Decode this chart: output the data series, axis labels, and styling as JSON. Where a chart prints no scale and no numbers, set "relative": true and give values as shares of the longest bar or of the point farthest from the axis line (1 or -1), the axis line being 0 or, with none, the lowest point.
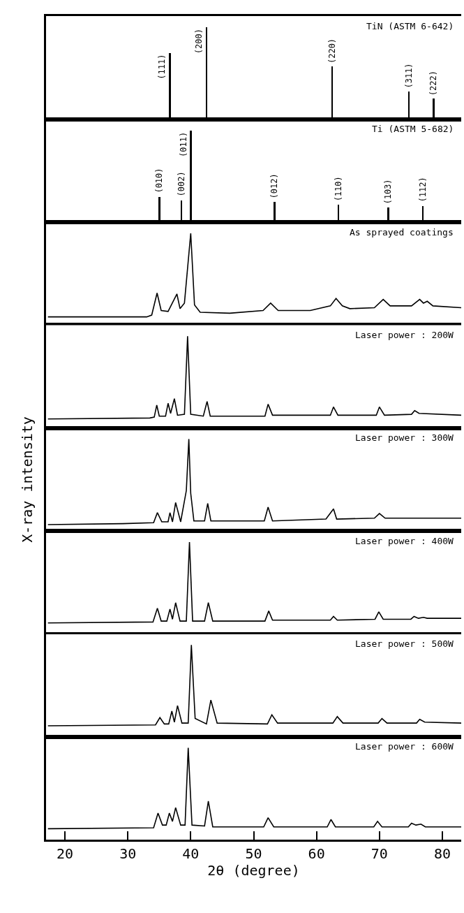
{
  "chart_data": [
    {
      "type": "bar",
      "title": "TiN (ASTM 6-642)",
      "xlim": [
        17,
        83
      ],
      "relative": true,
      "tick_labels": false,
      "series": [
        {
          "color": "#000000",
          "x": [
            36.7,
            42.5,
            62.5,
            74.7,
            78.6
          ],
          "values": [
            0.72,
            1,
            0.57,
            0.3,
            0.22
          ]
        }
      ],
      "annotations": [
        {
          "text": "(111)",
          "x": 36.7,
          "y": 0.72
        },
        {
          "text": "(200)",
          "x": 42.5,
          "y": 1
        },
        {
          "text": "(220)",
          "x": 62.5,
          "y": 0.57
        },
        {
          "text": "(311)",
          "x": 74.7,
          "y": 0.3
        },
        {
          "text": "(222)",
          "x": 78.6,
          "y": 0.22
        }
      ]
    },
    {
      "type": "bar",
      "title": "Ti (ASTM 5-682)",
      "xlim": [
        17,
        83
      ],
      "relative": true,
      "tick_labels": false,
      "series": [
        {
          "color": "#000000",
          "x": [
            35.0,
            38.5,
            40.0,
            53.3,
            63.5,
            71.4,
            76.9
          ],
          "values": [
            0.28,
            0.24,
            1,
            0.22,
            0.19,
            0.16,
            0.18
          ]
        }
      ],
      "annotations": [
        {
          "text": "(010)",
          "x": 35.0,
          "y": 0.28
        },
        {
          "text": "(002)",
          "x": 38.5,
          "y": 0.24
        },
        {
          "text": "(011)",
          "x": 40.0,
          "y": 1
        },
        {
          "text": "(012)",
          "x": 53.3,
          "y": 0.22
        },
        {
          "text": "(110)",
          "x": 63.5,
          "y": 0.19
        },
        {
          "text": "(103)",
          "x": 71.4,
          "y": 0.16
        },
        {
          "text": "(112)",
          "x": 76.9,
          "y": 0.18
        }
      ]
    },
    {
      "type": "line",
      "title": "As sprayed coatings",
      "xlim": [
        17,
        83
      ],
      "relative": true,
      "tick_labels": false,
      "series": [
        {
          "color": "#000000",
          "x": [
            17.3,
            33.0,
            33.8,
            34.65,
            35.3,
            36.4,
            37.8,
            38.3,
            39.0,
            40.0,
            40.6,
            41.5,
            46.2,
            51.5,
            52.7,
            53.9,
            59.0,
            62.2,
            63.1,
            64.1,
            65.3,
            69.2,
            70.6,
            71.7,
            75.1,
            76.4,
            77.0,
            77.6,
            78.5,
            83.0
          ],
          "values": [
            0.09,
            0.09,
            0.11,
            0.35,
            0.16,
            0.15,
            0.34,
            0.18,
            0.24,
            1,
            0.22,
            0.14,
            0.13,
            0.16,
            0.24,
            0.16,
            0.16,
            0.21,
            0.29,
            0.21,
            0.18,
            0.19,
            0.28,
            0.21,
            0.21,
            0.28,
            0.24,
            0.26,
            0.21,
            0.19
          ]
        }
      ]
    },
    {
      "type": "line",
      "title": "Laser power : 200W",
      "xlim": [
        17,
        83
      ],
      "relative": true,
      "tick_labels": false,
      "series": [
        {
          "color": "#000000",
          "x": [
            17.3,
            33.5,
            34.2,
            34.6,
            35.0,
            36.0,
            36.4,
            36.8,
            37.4,
            37.9,
            39.0,
            39.5,
            40.0,
            42.0,
            42.6,
            43.1,
            51.8,
            52.3,
            53.0,
            62.2,
            62.7,
            63.4,
            69.5,
            70.0,
            70.8,
            75.1,
            75.6,
            76.3,
            83.0
          ],
          "values": [
            0.1,
            0.11,
            0.12,
            0.25,
            0.13,
            0.13,
            0.27,
            0.16,
            0.32,
            0.14,
            0.15,
            1,
            0.15,
            0.13,
            0.29,
            0.13,
            0.13,
            0.26,
            0.14,
            0.14,
            0.23,
            0.14,
            0.14,
            0.23,
            0.14,
            0.15,
            0.19,
            0.16,
            0.14
          ]
        }
      ]
    },
    {
      "type": "line",
      "title": "Laser power : 300W",
      "ylabel": "X-ray intensity",
      "xlim": [
        17,
        83
      ],
      "relative": true,
      "tick_labels": false,
      "series": [
        {
          "color": "#000000",
          "x": [
            17.3,
            29.2,
            34.1,
            34.7,
            35.4,
            36.4,
            36.7,
            37.1,
            37.6,
            38.4,
            39.3,
            39.7,
            40.0,
            40.5,
            42.2,
            42.7,
            43.2,
            51.7,
            52.3,
            53.0,
            61.5,
            62.7,
            63.2,
            69.2,
            70.0,
            70.9,
            83.0
          ],
          "values": [
            0.07,
            0.08,
            0.09,
            0.2,
            0.1,
            0.1,
            0.2,
            0.1,
            0.31,
            0.1,
            0.44,
            1,
            0.41,
            0.11,
            0.11,
            0.3,
            0.11,
            0.11,
            0.26,
            0.11,
            0.13,
            0.24,
            0.13,
            0.14,
            0.19,
            0.14,
            0.14
          ]
        }
      ]
    },
    {
      "type": "line",
      "title": "Laser power : 400W",
      "xlim": [
        17,
        83
      ],
      "relative": true,
      "tick_labels": false,
      "series": [
        {
          "color": "#000000",
          "x": [
            17.3,
            34.0,
            34.7,
            35.3,
            36.2,
            36.7,
            37.1,
            37.6,
            38.3,
            39.3,
            39.8,
            40.3,
            42.2,
            42.8,
            43.5,
            51.8,
            52.4,
            53.0,
            62.2,
            62.7,
            63.3,
            69.3,
            69.9,
            70.6,
            75.0,
            75.5,
            76.2,
            77.0,
            77.6,
            83.0
          ],
          "values": [
            0.12,
            0.13,
            0.28,
            0.14,
            0.14,
            0.27,
            0.16,
            0.34,
            0.14,
            0.14,
            1,
            0.14,
            0.14,
            0.34,
            0.14,
            0.14,
            0.25,
            0.15,
            0.15,
            0.19,
            0.15,
            0.16,
            0.24,
            0.16,
            0.16,
            0.19,
            0.17,
            0.18,
            0.17,
            0.17
          ]
        }
      ]
    },
    {
      "type": "line",
      "title": "Laser power : 500W",
      "xlim": [
        17,
        83
      ],
      "relative": true,
      "tick_labels": false,
      "series": [
        {
          "color": "#000000",
          "x": [
            17.3,
            34.4,
            35.1,
            35.8,
            36.5,
            37.0,
            37.4,
            37.9,
            38.6,
            39.6,
            40.1,
            40.7,
            42.5,
            43.2,
            44.2,
            52.2,
            52.9,
            53.8,
            62.6,
            63.3,
            64.2,
            69.8,
            70.4,
            71.2,
            75.9,
            76.4,
            77.2,
            83.0
          ],
          "values": [
            0.12,
            0.13,
            0.21,
            0.14,
            0.14,
            0.28,
            0.16,
            0.34,
            0.15,
            0.15,
            1,
            0.2,
            0.14,
            0.4,
            0.15,
            0.14,
            0.24,
            0.15,
            0.15,
            0.22,
            0.15,
            0.15,
            0.2,
            0.15,
            0.15,
            0.19,
            0.16,
            0.15
          ]
        }
      ]
    },
    {
      "type": "line",
      "title": "Laser power : 600W",
      "xlabel": "2θ (degree)",
      "xlim": [
        17,
        83
      ],
      "relative": true,
      "tick_labels": "x",
      "xticks": [
        20,
        30,
        40,
        50,
        60,
        70,
        80
      ],
      "series": [
        {
          "color": "#000000",
          "x": [
            17.3,
            34.1,
            34.8,
            35.5,
            36.1,
            36.6,
            37.1,
            37.6,
            38.4,
            39.1,
            39.6,
            40.2,
            42.2,
            42.8,
            43.5,
            51.6,
            52.3,
            53.2,
            61.7,
            62.3,
            63.0,
            69.1,
            69.7,
            70.4,
            74.6,
            75.1,
            75.8,
            76.6,
            77.3,
            83.0
          ],
          "values": [
            0.12,
            0.13,
            0.29,
            0.16,
            0.16,
            0.29,
            0.2,
            0.35,
            0.16,
            0.16,
            1,
            0.16,
            0.15,
            0.42,
            0.14,
            0.14,
            0.24,
            0.14,
            0.14,
            0.22,
            0.14,
            0.14,
            0.2,
            0.14,
            0.14,
            0.18,
            0.16,
            0.17,
            0.14,
            0.14
          ]
        }
      ]
    }
  ]
}
